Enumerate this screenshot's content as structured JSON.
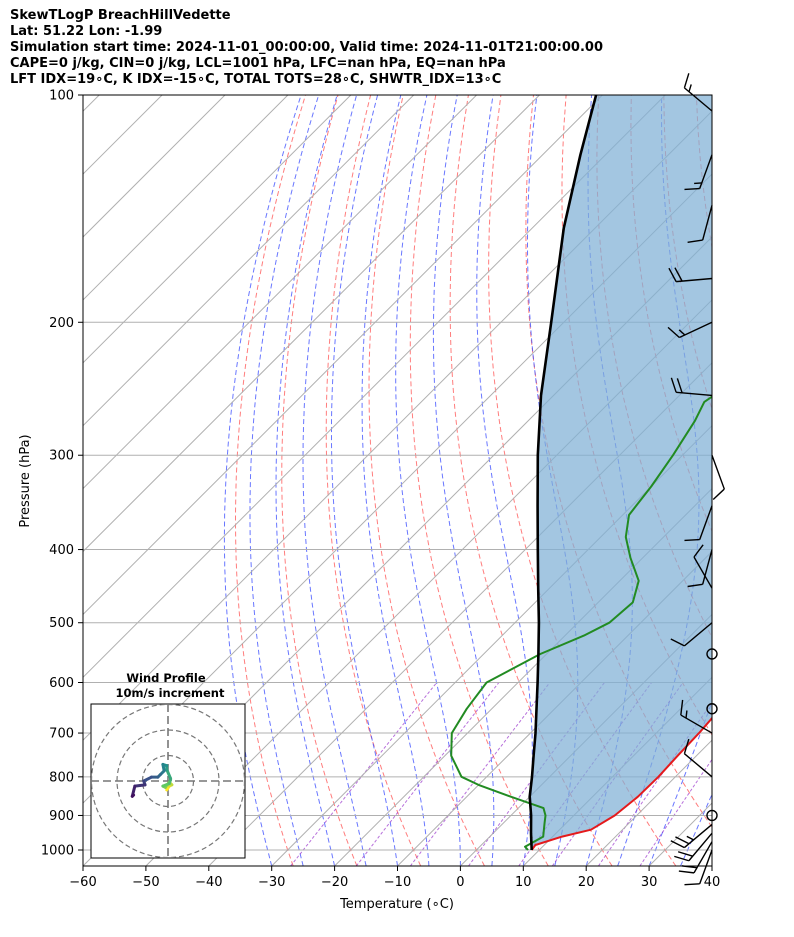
{
  "header": {
    "line1": "SkewTLogP BreachHillVedette",
    "line2": "Lat: 51.22   Lon: -1.99",
    "line3": "Simulation start time: 2024-11-01_00:00:00, Valid time: 2024-11-01T21:00:00.00",
    "line4": "CAPE=0 j/kg, CIN=0 j/kg, LCL=1001 hPa, LFC=nan hPa, EQ=nan hPa",
    "line5": "LFT IDX=19∘C, K IDX=-15∘C, TOTAL TOTS=28∘C, SHWTR_IDX=13∘C"
  },
  "chart_data": {
    "type": "line",
    "subtype": "skew-T log-P diagram",
    "xlabel": "Temperature (∘C)",
    "ylabel": "Pressure (hPa)",
    "xlim": [
      -60,
      40
    ],
    "ylim": [
      1050,
      100
    ],
    "y_scale": "log",
    "x_ticks": [
      "−60",
      "−50",
      "−40",
      "−30",
      "−20",
      "−10",
      "0",
      "10",
      "20",
      "30",
      "40"
    ],
    "y_ticks": [
      "100",
      "200",
      "300",
      "400",
      "500",
      "600",
      "700",
      "800",
      "900",
      "1000"
    ],
    "grid": true,
    "colors": {
      "temperature": "#e41a1c",
      "dewpoint": "#228b22",
      "parcel": "#000000",
      "cape_fill": "#7fb0d5",
      "dry_adiabats": "#ff6666",
      "moist_adiabats": "#4455ff",
      "mixing_ratio": "#9933cc",
      "isotherms": "#b0b0b0"
    },
    "temperature": [
      {
        "p": 1000,
        "t": 8.8
      },
      {
        "p": 985,
        "t": 8.6
      },
      {
        "p": 960,
        "t": 11.5
      },
      {
        "p": 940,
        "t": 15.0
      },
      {
        "p": 900,
        "t": 16.5
      },
      {
        "p": 850,
        "t": 17.2
      },
      {
        "p": 800,
        "t": 17.3
      },
      {
        "p": 750,
        "t": 17.0
      },
      {
        "p": 700,
        "t": 16.8
      },
      {
        "p": 650,
        "t": 16.3
      },
      {
        "p": 600,
        "t": 14.5
      },
      {
        "p": 550,
        "t": 13.3
      },
      {
        "p": 500,
        "t": 10.8
      },
      {
        "p": 450,
        "t": 7.8
      },
      {
        "p": 400,
        "t": 4.8
      },
      {
        "p": 350,
        "t": 1.5
      },
      {
        "p": 300,
        "t": -1.5
      },
      {
        "p": 270,
        "t": -4.0
      },
      {
        "p": 240,
        "t": -5.5
      },
      {
        "p": 225,
        "t": -5.5
      },
      {
        "p": 210,
        "t": -5.0
      },
      {
        "p": 200,
        "t": -5.8
      },
      {
        "p": 190,
        "t": -7.0
      },
      {
        "p": 180,
        "t": -8.5
      },
      {
        "p": 170,
        "t": -9.0
      },
      {
        "p": 160,
        "t": -7.5
      },
      {
        "p": 150,
        "t": -5.5
      },
      {
        "p": 140,
        "t": -5.3
      },
      {
        "p": 130,
        "t": -3.8
      },
      {
        "p": 120,
        "t": -1.2
      },
      {
        "p": 110,
        "t": 1.0
      },
      {
        "p": 100,
        "t": 2.0
      }
    ],
    "dewpoint": [
      {
        "p": 1000,
        "t": 8.2
      },
      {
        "p": 990,
        "t": 7.2
      },
      {
        "p": 960,
        "t": 8.5
      },
      {
        "p": 920,
        "t": 6.5
      },
      {
        "p": 900,
        "t": 5.5
      },
      {
        "p": 880,
        "t": 4.0
      },
      {
        "p": 850,
        "t": -3.0
      },
      {
        "p": 820,
        "t": -10.0
      },
      {
        "p": 800,
        "t": -14.0
      },
      {
        "p": 750,
        "t": -19.0
      },
      {
        "p": 700,
        "t": -22.5
      },
      {
        "p": 650,
        "t": -24.0
      },
      {
        "p": 600,
        "t": -25.0
      },
      {
        "p": 550,
        "t": -21.0
      },
      {
        "p": 520,
        "t": -17.0
      },
      {
        "p": 500,
        "t": -15.0
      },
      {
        "p": 470,
        "t": -14.5
      },
      {
        "p": 440,
        "t": -17.0
      },
      {
        "p": 410,
        "t": -22.0
      },
      {
        "p": 385,
        "t": -26.0
      },
      {
        "p": 360,
        "t": -29.0
      },
      {
        "p": 330,
        "t": -30.0
      },
      {
        "p": 300,
        "t": -31.5
      },
      {
        "p": 270,
        "t": -33.5
      },
      {
        "p": 255,
        "t": -35.0
      },
      {
        "p": 240,
        "t": -33.5
      },
      {
        "p": 225,
        "t": -30.0
      },
      {
        "p": 215,
        "t": -23.5
      },
      {
        "p": 200,
        "t": -24.0
      },
      {
        "p": 190,
        "t": -24.0
      },
      {
        "p": 180,
        "t": -25.0
      },
      {
        "p": 165,
        "t": -25.0
      },
      {
        "p": 155,
        "t": -23.0
      },
      {
        "p": 145,
        "t": -22.5
      },
      {
        "p": 135,
        "t": -23.5
      },
      {
        "p": 125,
        "t": -21.5
      },
      {
        "p": 115,
        "t": -17.5
      },
      {
        "p": 108,
        "t": -16.5
      },
      {
        "p": 100,
        "t": -15.5
      }
    ],
    "parcel": [
      {
        "p": 1000,
        "t": 8.8
      },
      {
        "p": 950,
        "t": 6.0
      },
      {
        "p": 900,
        "t": 3.2
      },
      {
        "p": 850,
        "t": 0.0
      },
      {
        "p": 800,
        "t": -2.8
      },
      {
        "p": 750,
        "t": -5.9
      },
      {
        "p": 700,
        "t": -9.2
      },
      {
        "p": 650,
        "t": -12.9
      },
      {
        "p": 600,
        "t": -16.9
      },
      {
        "p": 550,
        "t": -21.3
      },
      {
        "p": 500,
        "t": -26.2
      },
      {
        "p": 450,
        "t": -31.8
      },
      {
        "p": 400,
        "t": -38.0
      },
      {
        "p": 350,
        "t": -45.0
      },
      {
        "p": 300,
        "t": -53.0
      },
      {
        "p": 250,
        "t": -62.0
      },
      {
        "p": 200,
        "t": -72.0
      },
      {
        "p": 150,
        "t": -85.0
      },
      {
        "p": 120,
        "t": -94.0
      },
      {
        "p": 100,
        "t": -101.0
      }
    ],
    "wind_barbs": [
      {
        "p": 1000,
        "speed_kt": 10,
        "dir": 200
      },
      {
        "p": 975,
        "speed_kt": 20,
        "dir": 210
      },
      {
        "p": 950,
        "speed_kt": 20,
        "dir": 220
      },
      {
        "p": 925,
        "speed_kt": 25,
        "dir": 230
      },
      {
        "p": 900,
        "speed_kt": 0,
        "dir": 0
      },
      {
        "p": 800,
        "speed_kt": 10,
        "dir": 310
      },
      {
        "p": 700,
        "speed_kt": 15,
        "dir": 300
      },
      {
        "p": 650,
        "speed_kt": 0,
        "dir": 0
      },
      {
        "p": 550,
        "speed_kt": 0,
        "dir": 0
      },
      {
        "p": 500,
        "speed_kt": 10,
        "dir": 230
      },
      {
        "p": 450,
        "speed_kt": 10,
        "dir": 330
      },
      {
        "p": 400,
        "speed_kt": 10,
        "dir": 195
      },
      {
        "p": 350,
        "speed_kt": 10,
        "dir": 200
      },
      {
        "p": 300,
        "speed_kt": 10,
        "dir": 160
      },
      {
        "p": 250,
        "speed_kt": 20,
        "dir": 275
      },
      {
        "p": 200,
        "speed_kt": 15,
        "dir": 245
      },
      {
        "p": 175,
        "speed_kt": 20,
        "dir": 265
      },
      {
        "p": 140,
        "speed_kt": 10,
        "dir": 195
      },
      {
        "p": 120,
        "speed_kt": 15,
        "dir": 200
      },
      {
        "p": 105,
        "speed_kt": 15,
        "dir": 310
      }
    ],
    "hodograph": {
      "title": "Wind Profile",
      "subtitle": "10m/s increment",
      "rings_ms": [
        10,
        20,
        30
      ],
      "points": [
        {
          "u": -0.5,
          "v": -3.5,
          "level": 0.0
        },
        {
          "u": 0.5,
          "v": -2.0,
          "level": 0.05
        },
        {
          "u": 1.5,
          "v": -1.5,
          "level": 0.1
        },
        {
          "u": 0.5,
          "v": -0.5,
          "level": 0.15
        },
        {
          "u": -1.0,
          "v": -2.5,
          "level": 0.2
        },
        {
          "u": -2.0,
          "v": -2.0,
          "level": 0.25
        },
        {
          "u": 0.5,
          "v": -1.0,
          "level": 0.3
        },
        {
          "u": 1.0,
          "v": 0.5,
          "level": 0.35
        },
        {
          "u": 1.0,
          "v": 1.0,
          "level": 0.4
        },
        {
          "u": -0.5,
          "v": 4.5,
          "level": 0.45
        },
        {
          "u": -0.5,
          "v": 6.0,
          "level": 0.5
        },
        {
          "u": -2.0,
          "v": 6.5,
          "level": 0.55
        },
        {
          "u": -1.5,
          "v": 4.0,
          "level": 0.6
        },
        {
          "u": -3.0,
          "v": 2.5,
          "level": 0.65
        },
        {
          "u": -4.0,
          "v": 1.5,
          "level": 0.7
        },
        {
          "u": -6.5,
          "v": 1.5,
          "level": 0.75
        },
        {
          "u": -9.5,
          "v": 0.0,
          "level": 0.8
        },
        {
          "u": -9.0,
          "v": -1.5,
          "level": 0.85
        },
        {
          "u": -13.0,
          "v": -2.0,
          "level": 0.9
        },
        {
          "u": -14.0,
          "v": -6.0,
          "level": 0.95
        },
        {
          "u": -13.5,
          "v": -5.5,
          "level": 1.0
        }
      ]
    }
  }
}
